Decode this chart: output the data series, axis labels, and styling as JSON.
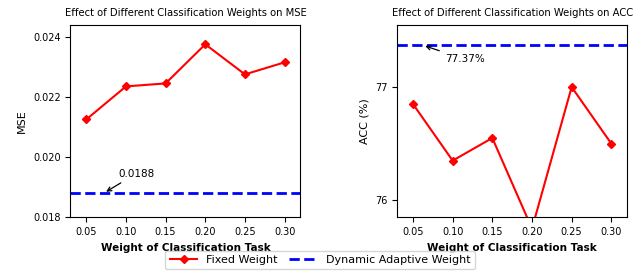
{
  "x": [
    0.05,
    0.1,
    0.15,
    0.2,
    0.25,
    0.3
  ],
  "mse_values": [
    0.02125,
    0.02235,
    0.02245,
    0.02375,
    0.02275,
    0.02315
  ],
  "mse_dashed": 0.0188,
  "acc_values": [
    76.85,
    76.35,
    76.55,
    75.75,
    77.0,
    76.5
  ],
  "acc_dashed": 77.37,
  "mse_title": "Effect of Different Classification Weights on MSE",
  "acc_title": "Effect of Different Classification Weights on ACC",
  "xlabel": "Weight of Classification Task",
  "mse_ylabel": "MSE",
  "acc_ylabel": "ACC (%)",
  "mse_annotation": "0.0188",
  "acc_annotation": "77.37%",
  "line_color": "#ff0000",
  "dashed_color": "#0000ff",
  "legend_fixed": "Fixed Weight",
  "legend_dynamic": "Dynamic Adaptive Weight",
  "mse_ylim": [
    0.018,
    0.0244
  ],
  "acc_ylim": [
    75.85,
    77.55
  ],
  "mse_yticks": [
    0.018,
    0.02,
    0.022,
    0.024
  ],
  "acc_yticks": [
    76.0,
    77.0
  ],
  "xticks": [
    0.05,
    0.1,
    0.15,
    0.2,
    0.25,
    0.3
  ]
}
